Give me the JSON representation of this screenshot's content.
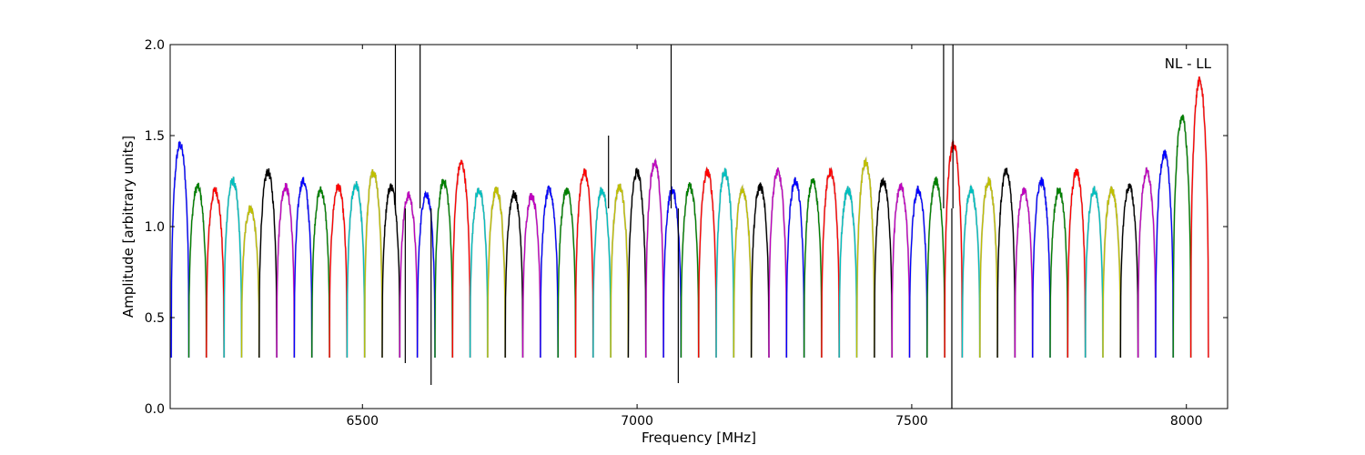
{
  "chart_data": {
    "type": "line",
    "title": "",
    "xlabel": "Frequency [MHz]",
    "ylabel": "Amplitude [arbitrary units]",
    "xlim": [
      6150,
      8075
    ],
    "ylim": [
      0.0,
      2.0
    ],
    "x_ticks": [
      6500,
      7000,
      7500,
      8000
    ],
    "x_tick_labels": [
      "6500",
      "7000",
      "7500",
      "8000"
    ],
    "y_ticks": [
      0.0,
      0.5,
      1.0,
      1.5,
      2.0
    ],
    "y_tick_labels": [
      "0.0",
      "0.5",
      "1.0",
      "1.5",
      "2.0"
    ],
    "grid": false,
    "annotation": "NL - LL",
    "background_color": "#c0c0c0",
    "colors": [
      "#0000ff",
      "#008000",
      "#ff0000",
      "#00bfbf",
      "#bfbf00",
      "#000000",
      "#bf00bf"
    ],
    "channel_width_mhz": 32,
    "first_channel_start_mhz": 6152,
    "channel_count": 59,
    "channel_levels": [
      1.45,
      1.22,
      1.2,
      1.25,
      1.1,
      1.3,
      1.22,
      1.25,
      1.2,
      1.22,
      1.23,
      1.3,
      1.22,
      1.17,
      1.18,
      1.25,
      1.35,
      1.2,
      1.2,
      1.18,
      1.17,
      1.2,
      1.2,
      1.3,
      1.2,
      1.22,
      1.3,
      1.35,
      1.2,
      1.22,
      1.3,
      1.3,
      1.2,
      1.22,
      1.3,
      1.25,
      1.25,
      1.3,
      1.2,
      1.35,
      1.25,
      1.22,
      1.2,
      1.25,
      1.45,
      1.2,
      1.25,
      1.3,
      1.2,
      1.25,
      1.2,
      1.3,
      1.2,
      1.2,
      1.22,
      1.3,
      1.4,
      1.6,
      1.8
    ],
    "spikes": [
      {
        "x": 6560,
        "y": 2.0
      },
      {
        "x": 6578,
        "y": 0.25
      },
      {
        "x": 6605,
        "y": 2.0
      },
      {
        "x": 6625,
        "y": 0.13
      },
      {
        "x": 6948,
        "y": 1.5
      },
      {
        "x": 7062,
        "y": 2.0
      },
      {
        "x": 7075,
        "y": 0.14
      },
      {
        "x": 7558,
        "y": 2.0
      },
      {
        "x": 7573,
        "y": 0.0
      },
      {
        "x": 7575,
        "y": 2.0
      }
    ]
  }
}
